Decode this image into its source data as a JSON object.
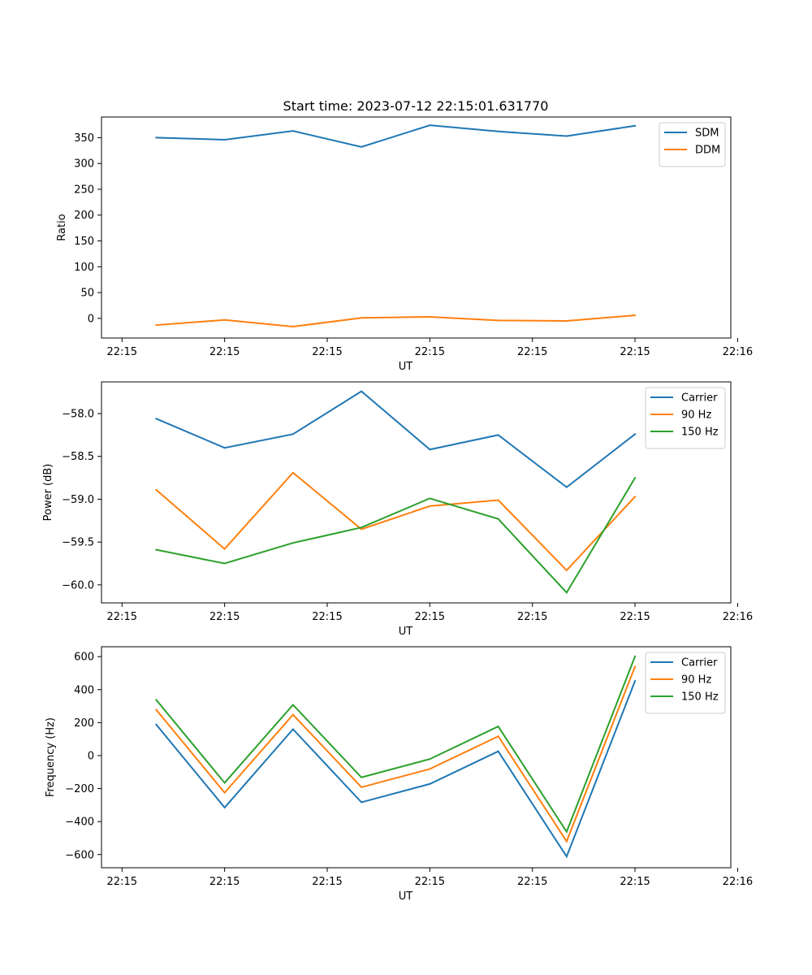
{
  "figure_title": "Start time: 2023-07-12 22:15:01.631770",
  "chart_data": [
    {
      "type": "line",
      "title": "Start time: 2023-07-12 22:15:01.631770",
      "xlabel": "UT",
      "ylabel": "Ratio",
      "x": [
        1,
        2,
        3,
        4,
        5,
        6,
        7,
        8
      ],
      "xlim": [
        0.2,
        9.4
      ],
      "x_ticks": [
        0.5,
        2.0,
        3.5,
        5.0,
        6.5,
        8.0,
        9.5
      ],
      "x_tick_labels": [
        "22:15",
        "22:15",
        "22:15",
        "22:15",
        "22:15",
        "22:15",
        "22:16"
      ],
      "ylim": [
        -38,
        390
      ],
      "y_ticks": [
        0,
        50,
        100,
        150,
        200,
        250,
        300,
        350
      ],
      "y_tick_labels": [
        "0",
        "50",
        "100",
        "150",
        "200",
        "250",
        "300",
        "350"
      ],
      "legend_position": "upper-right",
      "series": [
        {
          "name": "SDM",
          "color": "#1f77b4",
          "values": [
            350,
            346,
            363,
            332,
            374,
            362,
            353,
            373
          ]
        },
        {
          "name": "DDM",
          "color": "#ff7f0e",
          "values": [
            -13,
            -3,
            -16,
            1,
            3,
            -4,
            -5,
            6
          ]
        }
      ]
    },
    {
      "type": "line",
      "title": "",
      "xlabel": "UT",
      "ylabel": "Power (dB)",
      "x": [
        1,
        2,
        3,
        4,
        5,
        6,
        7,
        8
      ],
      "xlim": [
        0.2,
        9.4
      ],
      "x_ticks": [
        0.5,
        2.0,
        3.5,
        5.0,
        6.5,
        8.0,
        9.5
      ],
      "x_tick_labels": [
        "22:15",
        "22:15",
        "22:15",
        "22:15",
        "22:15",
        "22:15",
        "22:16"
      ],
      "ylim": [
        -60.21,
        -57.63
      ],
      "y_ticks": [
        -60.0,
        -59.5,
        -59.0,
        -58.5,
        -58.0
      ],
      "y_tick_labels": [
        "−60.0",
        "−59.5",
        "−59.0",
        "−58.5",
        "−58.0"
      ],
      "legend_position": "upper-right",
      "series": [
        {
          "name": "Carrier",
          "color": "#1f77b4",
          "values": [
            -58.06,
            -58.4,
            -58.24,
            -57.74,
            -58.42,
            -58.25,
            -58.86,
            -58.24
          ]
        },
        {
          "name": "90 Hz",
          "color": "#ff7f0e",
          "values": [
            -58.89,
            -59.58,
            -58.69,
            -59.35,
            -59.08,
            -59.01,
            -59.83,
            -58.97
          ]
        },
        {
          "name": "150 Hz",
          "color": "#2ca02c",
          "values": [
            -59.59,
            -59.75,
            -59.51,
            -59.33,
            -58.99,
            -59.23,
            -60.09,
            -58.75
          ]
        }
      ]
    },
    {
      "type": "line",
      "title": "",
      "xlabel": "UT",
      "ylabel": "Frequency (Hz)",
      "x": [
        1,
        2,
        3,
        4,
        5,
        6,
        7,
        8
      ],
      "xlim": [
        0.2,
        9.4
      ],
      "x_ticks": [
        0.5,
        2.0,
        3.5,
        5.0,
        6.5,
        8.0,
        9.5
      ],
      "x_tick_labels": [
        "22:15",
        "22:15",
        "22:15",
        "22:15",
        "22:15",
        "22:15",
        "22:16"
      ],
      "ylim": [
        -680,
        660
      ],
      "y_ticks": [
        -600,
        -400,
        -200,
        0,
        200,
        400,
        600
      ],
      "y_tick_labels": [
        "−600",
        "−400",
        "−200",
        "0",
        "200",
        "400",
        "600"
      ],
      "legend_position": "upper-right",
      "series": [
        {
          "name": "Carrier",
          "color": "#1f77b4",
          "values": [
            188,
            -315,
            160,
            -283,
            -172,
            26,
            -612,
            453
          ]
        },
        {
          "name": "90 Hz",
          "color": "#ff7f0e",
          "values": [
            278,
            -225,
            248,
            -192,
            -81,
            117,
            -520,
            540
          ]
        },
        {
          "name": "150 Hz",
          "color": "#2ca02c",
          "values": [
            338,
            -165,
            308,
            -132,
            -21,
            177,
            -462,
            602
          ]
        }
      ]
    }
  ]
}
